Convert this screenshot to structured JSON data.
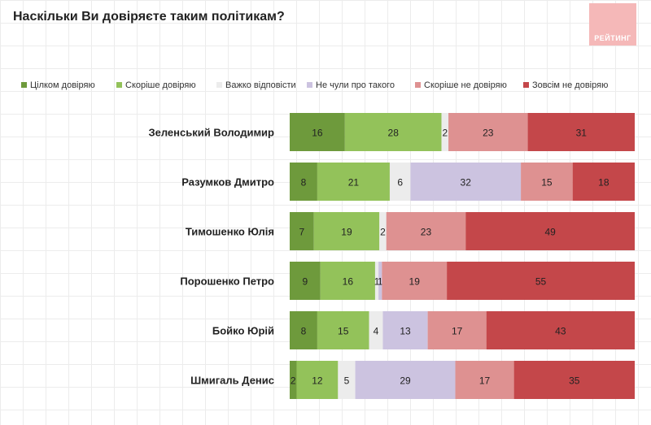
{
  "title": "Наскільки Ви довіряєте таким політикам?",
  "logo_text": "РЕЙТИНГ",
  "chart_data": {
    "type": "bar",
    "orientation": "horizontal",
    "stacked": true,
    "legend_position": "top",
    "grid": true,
    "categories": [
      "Зеленський Володимир",
      "Разумков Дмитро",
      "Тимошенко Юлія",
      "Порошенко Петро",
      "Бойко Юрій",
      "Шмигаль Денис"
    ],
    "series": [
      {
        "name": "Цілком довіряю",
        "color": "#6e9a3c",
        "values": [
          16,
          8,
          7,
          9,
          8,
          2
        ]
      },
      {
        "name": "Скоріше довіряю",
        "color": "#93c25a",
        "values": [
          28,
          21,
          19,
          16,
          15,
          12
        ]
      },
      {
        "name": "Важко відповісти",
        "color": "#ececec",
        "values": [
          2,
          6,
          2,
          1,
          4,
          5
        ]
      },
      {
        "name": "Не чули про такого",
        "color": "#ccc3e0",
        "values": [
          0,
          32,
          0,
          1,
          13,
          29
        ]
      },
      {
        "name": "Скоріше не довіряю",
        "color": "#de9191",
        "values": [
          23,
          15,
          23,
          19,
          17,
          17
        ]
      },
      {
        "name": "Зовсім не довіряю",
        "color": "#c4474a",
        "values": [
          31,
          18,
          49,
          55,
          43,
          35
        ]
      }
    ]
  }
}
